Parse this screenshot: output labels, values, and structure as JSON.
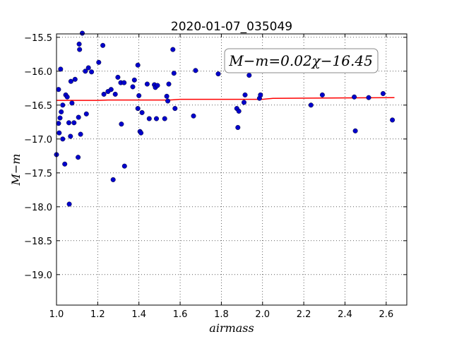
{
  "chart_data": {
    "type": "scatter",
    "title": "2020-01-07_035049",
    "xlabel": "airmass",
    "ylabel": "M−m",
    "xlim": [
      1.0,
      2.7
    ],
    "ylim": [
      -15.45,
      -19.45
    ],
    "y_inverted": true,
    "grid": true,
    "xticks": [
      1.0,
      1.2,
      1.4,
      1.6,
      1.8,
      2.0,
      2.2,
      2.4,
      2.6
    ],
    "xtick_labels": [
      "1.0",
      "1.2",
      "1.4",
      "1.6",
      "1.8",
      "2.0",
      "2.2",
      "2.4",
      "2.6"
    ],
    "yticks": [
      -15.5,
      -16.0,
      -16.5,
      -17.0,
      -17.5,
      -18.0,
      -18.5,
      -19.0
    ],
    "ytick_labels": [
      "−15.5",
      "−16.0",
      "−16.5",
      "−17.0",
      "−17.5",
      "−18.0",
      "−18.5",
      "−19.0"
    ],
    "annotation": "M−m=0.02χ−16.45",
    "series": [
      {
        "kind": "points",
        "color": "#0000cc",
        "points": [
          [
            1.0,
            -17.23
          ],
          [
            1.01,
            -16.27
          ],
          [
            1.01,
            -16.77
          ],
          [
            1.013,
            -16.91
          ],
          [
            1.017,
            -16.69
          ],
          [
            1.02,
            -15.97
          ],
          [
            1.023,
            -16.6
          ],
          [
            1.03,
            -17.0
          ],
          [
            1.03,
            -16.5
          ],
          [
            1.04,
            -17.37
          ],
          [
            1.045,
            -16.35
          ],
          [
            1.052,
            -16.38
          ],
          [
            1.06,
            -16.76
          ],
          [
            1.062,
            -17.96
          ],
          [
            1.068,
            -16.96
          ],
          [
            1.07,
            -16.15
          ],
          [
            1.075,
            -16.47
          ],
          [
            1.085,
            -16.76
          ],
          [
            1.09,
            -16.12
          ],
          [
            1.105,
            -17.27
          ],
          [
            1.107,
            -16.68
          ],
          [
            1.11,
            -15.6
          ],
          [
            1.112,
            -15.68
          ],
          [
            1.117,
            -16.93
          ],
          [
            1.125,
            -15.44
          ],
          [
            1.14,
            -16.0
          ],
          [
            1.145,
            -16.63
          ],
          [
            1.155,
            -15.95
          ],
          [
            1.17,
            -16.01
          ],
          [
            1.205,
            -15.87
          ],
          [
            1.225,
            -15.62
          ],
          [
            1.23,
            -16.34
          ],
          [
            1.25,
            -16.3
          ],
          [
            1.265,
            -16.27
          ],
          [
            1.275,
            -17.6
          ],
          [
            1.285,
            -16.34
          ],
          [
            1.298,
            -16.09
          ],
          [
            1.312,
            -16.17
          ],
          [
            1.315,
            -16.78
          ],
          [
            1.328,
            -16.17
          ],
          [
            1.33,
            -17.4
          ],
          [
            1.37,
            -16.23
          ],
          [
            1.378,
            -16.13
          ],
          [
            1.395,
            -15.91
          ],
          [
            1.395,
            -16.55
          ],
          [
            1.4,
            -16.36
          ],
          [
            1.405,
            -16.89
          ],
          [
            1.41,
            -16.91
          ],
          [
            1.415,
            -16.61
          ],
          [
            1.44,
            -16.19
          ],
          [
            1.45,
            -16.7
          ],
          [
            1.475,
            -16.2
          ],
          [
            1.48,
            -16.24
          ],
          [
            1.485,
            -16.7
          ],
          [
            1.49,
            -16.21
          ],
          [
            1.525,
            -16.7
          ],
          [
            1.535,
            -16.37
          ],
          [
            1.54,
            -16.44
          ],
          [
            1.545,
            -16.19
          ],
          [
            1.565,
            -15.68
          ],
          [
            1.57,
            -16.03
          ],
          [
            1.575,
            -16.55
          ],
          [
            1.665,
            -16.66
          ],
          [
            1.675,
            -15.99
          ],
          [
            1.785,
            -16.04
          ],
          [
            1.875,
            -16.55
          ],
          [
            1.88,
            -16.83
          ],
          [
            1.885,
            -16.59
          ],
          [
            1.91,
            -16.46
          ],
          [
            1.915,
            -16.35
          ],
          [
            1.935,
            -16.06
          ],
          [
            1.985,
            -16.4
          ],
          [
            1.99,
            -16.35
          ],
          [
            2.235,
            -16.5
          ],
          [
            2.29,
            -16.35
          ],
          [
            2.445,
            -16.38
          ],
          [
            2.45,
            -16.88
          ],
          [
            2.515,
            -16.39
          ],
          [
            2.585,
            -16.33
          ],
          [
            2.63,
            -16.72
          ]
        ]
      },
      {
        "kind": "fit-line",
        "color": "#ff0000",
        "points": [
          [
            1.0,
            -16.43
          ],
          [
            1.2,
            -16.43
          ],
          [
            1.25,
            -16.425
          ],
          [
            1.55,
            -16.425
          ],
          [
            1.6,
            -16.415
          ],
          [
            2.0,
            -16.415
          ],
          [
            2.05,
            -16.4
          ],
          [
            2.64,
            -16.39
          ]
        ]
      }
    ]
  }
}
